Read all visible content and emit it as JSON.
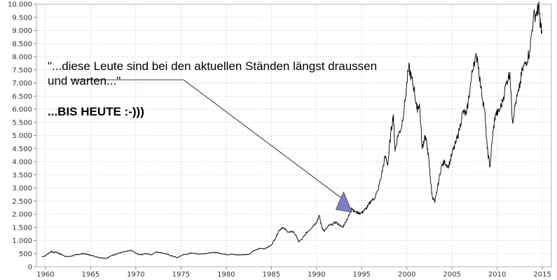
{
  "chart_data": {
    "type": "line",
    "title": "",
    "xlabel": "",
    "ylabel": "",
    "xlim": [
      1959,
      2016
    ],
    "ylim": [
      0,
      10000
    ],
    "grid": true,
    "legend": "none",
    "x_ticks": [
      1960,
      1965,
      1970,
      1975,
      1980,
      1985,
      1990,
      1995,
      2000,
      2005,
      2010,
      2015
    ],
    "x_tick_labels": [
      "1960",
      "1965",
      "1970",
      "1975",
      "1980",
      "1985",
      "1990",
      "1995",
      "2000",
      "2005",
      "2010",
      "2015"
    ],
    "y_ticks": [
      0,
      500,
      1000,
      1500,
      2000,
      2500,
      3000,
      3500,
      4000,
      4500,
      5000,
      5500,
      6000,
      6500,
      7000,
      7500,
      8000,
      8500,
      9000,
      9500,
      10000
    ],
    "y_tick_labels": [
      "0",
      "500",
      "1.000",
      "1.500",
      "2.000",
      "2.500",
      "3.000",
      "3.500",
      "4.000",
      "4.500",
      "5.000",
      "5.500",
      "6.000",
      "6.500",
      "7.000",
      "7.500",
      "8.000",
      "8.500",
      "9.000",
      "9.500",
      "10.000"
    ],
    "series": [
      {
        "color": "#000000",
        "points": [
          [
            1959.6,
            380
          ],
          [
            1960.0,
            420
          ],
          [
            1960.3,
            500
          ],
          [
            1960.6,
            580
          ],
          [
            1960.9,
            540
          ],
          [
            1961.2,
            560
          ],
          [
            1961.5,
            500
          ],
          [
            1961.8,
            460
          ],
          [
            1962.2,
            400
          ],
          [
            1962.6,
            380
          ],
          [
            1963.0,
            420
          ],
          [
            1963.4,
            450
          ],
          [
            1963.8,
            480
          ],
          [
            1964.2,
            500
          ],
          [
            1964.6,
            470
          ],
          [
            1965.0,
            440
          ],
          [
            1965.4,
            400
          ],
          [
            1965.8,
            360
          ],
          [
            1966.2,
            340
          ],
          [
            1966.6,
            320
          ],
          [
            1967.0,
            360
          ],
          [
            1967.4,
            440
          ],
          [
            1967.8,
            480
          ],
          [
            1968.2,
            520
          ],
          [
            1968.6,
            560
          ],
          [
            1969.0,
            580
          ],
          [
            1969.4,
            620
          ],
          [
            1969.8,
            560
          ],
          [
            1970.2,
            480
          ],
          [
            1970.6,
            460
          ],
          [
            1971.0,
            500
          ],
          [
            1971.4,
            480
          ],
          [
            1971.8,
            460
          ],
          [
            1972.2,
            560
          ],
          [
            1972.6,
            550
          ],
          [
            1973.0,
            520
          ],
          [
            1973.4,
            480
          ],
          [
            1973.8,
            430
          ],
          [
            1974.2,
            390
          ],
          [
            1974.6,
            340
          ],
          [
            1975.0,
            420
          ],
          [
            1975.4,
            470
          ],
          [
            1975.8,
            480
          ],
          [
            1976.2,
            530
          ],
          [
            1976.6,
            500
          ],
          [
            1977.0,
            480
          ],
          [
            1977.4,
            490
          ],
          [
            1977.8,
            510
          ],
          [
            1978.2,
            520
          ],
          [
            1978.6,
            540
          ],
          [
            1979.0,
            540
          ],
          [
            1979.4,
            500
          ],
          [
            1979.8,
            480
          ],
          [
            1980.2,
            460
          ],
          [
            1980.6,
            480
          ],
          [
            1981.0,
            460
          ],
          [
            1981.4,
            450
          ],
          [
            1981.8,
            460
          ],
          [
            1982.2,
            470
          ],
          [
            1982.6,
            480
          ],
          [
            1983.0,
            600
          ],
          [
            1983.4,
            650
          ],
          [
            1983.8,
            700
          ],
          [
            1984.2,
            680
          ],
          [
            1984.6,
            740
          ],
          [
            1985.0,
            820
          ],
          [
            1985.4,
            1050
          ],
          [
            1985.8,
            1350
          ],
          [
            1986.2,
            1500
          ],
          [
            1986.6,
            1400
          ],
          [
            1987.0,
            1300
          ],
          [
            1987.4,
            1350
          ],
          [
            1987.8,
            1150
          ],
          [
            1988.0,
            950
          ],
          [
            1988.4,
            1050
          ],
          [
            1988.8,
            1250
          ],
          [
            1989.2,
            1400
          ],
          [
            1989.6,
            1550
          ],
          [
            1990.0,
            1700
          ],
          [
            1990.3,
            1950
          ],
          [
            1990.6,
            1500
          ],
          [
            1990.9,
            1350
          ],
          [
            1991.3,
            1550
          ],
          [
            1991.7,
            1600
          ],
          [
            1992.1,
            1700
          ],
          [
            1992.5,
            1600
          ],
          [
            1992.9,
            1500
          ],
          [
            1993.2,
            1700
          ],
          [
            1993.6,
            1950
          ],
          [
            1993.9,
            2250
          ],
          [
            1994.2,
            2100
          ],
          [
            1994.6,
            2050
          ],
          [
            1995.0,
            2050
          ],
          [
            1995.3,
            2150
          ],
          [
            1995.7,
            2300
          ],
          [
            1996.0,
            2500
          ],
          [
            1996.4,
            2600
          ],
          [
            1996.8,
            2900
          ],
          [
            1997.2,
            3500
          ],
          [
            1997.6,
            4200
          ],
          [
            1997.9,
            3900
          ],
          [
            1998.2,
            5000
          ],
          [
            1998.5,
            5800
          ],
          [
            1998.7,
            4400
          ],
          [
            1999.0,
            5000
          ],
          [
            1999.4,
            5300
          ],
          [
            1999.8,
            6300
          ],
          [
            2000.2,
            7600
          ],
          [
            2000.5,
            7200
          ],
          [
            2000.8,
            6800
          ],
          [
            2001.1,
            6000
          ],
          [
            2001.4,
            6200
          ],
          [
            2001.7,
            4500
          ],
          [
            2002.0,
            5000
          ],
          [
            2002.3,
            4500
          ],
          [
            2002.6,
            3400
          ],
          [
            2002.8,
            2700
          ],
          [
            2003.1,
            2450
          ],
          [
            2003.4,
            3000
          ],
          [
            2003.8,
            3800
          ],
          [
            2004.2,
            4000
          ],
          [
            2004.6,
            3800
          ],
          [
            2005.0,
            4300
          ],
          [
            2005.4,
            4700
          ],
          [
            2005.8,
            5200
          ],
          [
            2006.2,
            5900
          ],
          [
            2006.6,
            5800
          ],
          [
            2007.0,
            6800
          ],
          [
            2007.4,
            7800
          ],
          [
            2007.8,
            8000
          ],
          [
            2008.2,
            6800
          ],
          [
            2008.6,
            6000
          ],
          [
            2008.9,
            4500
          ],
          [
            2009.2,
            3800
          ],
          [
            2009.5,
            5000
          ],
          [
            2009.8,
            5800
          ],
          [
            2010.2,
            5900
          ],
          [
            2010.6,
            6300
          ],
          [
            2011.0,
            7000
          ],
          [
            2011.4,
            7400
          ],
          [
            2011.7,
            5500
          ],
          [
            2012.0,
            6200
          ],
          [
            2012.4,
            6700
          ],
          [
            2012.8,
            7500
          ],
          [
            2013.2,
            7800
          ],
          [
            2013.6,
            8200
          ],
          [
            2014.0,
            9500
          ],
          [
            2014.4,
            9700
          ],
          [
            2014.6,
            9900
          ],
          [
            2014.8,
            9200
          ],
          [
            2014.95,
            8900
          ]
        ]
      }
    ],
    "annotation": {
      "line1": "\"...diese Leute sind bei den aktuellen Ständen längst draussen",
      "line2": "und warten...\"",
      "line3": "...BIS HEUTE :-)))",
      "arrow_target_x": 1993.0,
      "arrow_target_y": 2500,
      "arrow_color": "#7f7fc8"
    }
  }
}
